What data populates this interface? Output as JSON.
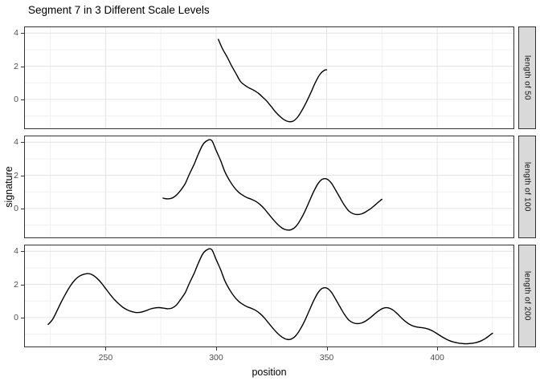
{
  "chart_data": {
    "type": "line",
    "title": "Segment 7 in 3 Different Scale Levels",
    "xlabel": "position",
    "ylabel": "signature",
    "x_ticks": [
      250,
      300,
      350,
      400
    ],
    "y_ticks": [
      4,
      2,
      0
    ],
    "x_minor": [
      225,
      275,
      325,
      375,
      425
    ],
    "y_minor": [
      3,
      1,
      -1
    ],
    "xlim": [
      213.5,
      434.5
    ],
    "ylim": [
      -1.75,
      4.35
    ],
    "grid": "major+minor",
    "legend": "none",
    "line_color": "#000000",
    "facets": [
      {
        "label": "length of 50",
        "points": [
          [
            301,
            3.62
          ],
          [
            303,
            3.02
          ],
          [
            305,
            2.55
          ],
          [
            307,
            2.02
          ],
          [
            309,
            1.55
          ],
          [
            311,
            1.08
          ],
          [
            313,
            0.85
          ],
          [
            315,
            0.68
          ],
          [
            317,
            0.55
          ],
          [
            319,
            0.38
          ],
          [
            321,
            0.14
          ],
          [
            323,
            -0.12
          ],
          [
            325,
            -0.45
          ],
          [
            327,
            -0.78
          ],
          [
            329,
            -1.05
          ],
          [
            331,
            -1.25
          ],
          [
            333,
            -1.35
          ],
          [
            335,
            -1.3
          ],
          [
            337,
            -1.05
          ],
          [
            339,
            -0.62
          ],
          [
            341,
            -0.12
          ],
          [
            343,
            0.45
          ],
          [
            345,
            1.05
          ],
          [
            347,
            1.52
          ],
          [
            349,
            1.76
          ],
          [
            350,
            1.78
          ]
        ]
      },
      {
        "label": "length of 100",
        "points": [
          [
            276,
            0.62
          ],
          [
            278,
            0.58
          ],
          [
            280,
            0.62
          ],
          [
            282,
            0.8
          ],
          [
            284,
            1.1
          ],
          [
            286,
            1.5
          ],
          [
            288,
            2.1
          ],
          [
            290,
            2.65
          ],
          [
            292,
            3.3
          ],
          [
            294,
            3.85
          ],
          [
            296,
            4.1
          ],
          [
            298,
            4.1
          ],
          [
            300,
            3.5
          ],
          [
            302,
            2.9
          ],
          [
            304,
            2.2
          ],
          [
            306,
            1.7
          ],
          [
            308,
            1.3
          ],
          [
            310,
            1.0
          ],
          [
            312,
            0.8
          ],
          [
            314,
            0.65
          ],
          [
            316,
            0.55
          ],
          [
            318,
            0.42
          ],
          [
            320,
            0.22
          ],
          [
            322,
            -0.05
          ],
          [
            324,
            -0.38
          ],
          [
            326,
            -0.7
          ],
          [
            328,
            -0.98
          ],
          [
            330,
            -1.2
          ],
          [
            332,
            -1.3
          ],
          [
            334,
            -1.28
          ],
          [
            336,
            -1.1
          ],
          [
            338,
            -0.72
          ],
          [
            340,
            -0.22
          ],
          [
            342,
            0.38
          ],
          [
            344,
            0.98
          ],
          [
            346,
            1.48
          ],
          [
            348,
            1.76
          ],
          [
            350,
            1.78
          ],
          [
            352,
            1.55
          ],
          [
            354,
            1.12
          ],
          [
            356,
            0.65
          ],
          [
            358,
            0.2
          ],
          [
            360,
            -0.15
          ],
          [
            362,
            -0.32
          ],
          [
            364,
            -0.37
          ],
          [
            366,
            -0.32
          ],
          [
            368,
            -0.18
          ],
          [
            370,
            0.0
          ],
          [
            372,
            0.22
          ],
          [
            374,
            0.45
          ],
          [
            375,
            0.55
          ]
        ]
      },
      {
        "label": "length of 200",
        "points": [
          [
            224,
            -0.42
          ],
          [
            226,
            -0.12
          ],
          [
            228,
            0.4
          ],
          [
            230,
            0.95
          ],
          [
            232,
            1.45
          ],
          [
            234,
            1.9
          ],
          [
            236,
            2.25
          ],
          [
            238,
            2.48
          ],
          [
            240,
            2.6
          ],
          [
            242,
            2.65
          ],
          [
            244,
            2.58
          ],
          [
            246,
            2.38
          ],
          [
            248,
            2.1
          ],
          [
            250,
            1.75
          ],
          [
            252,
            1.4
          ],
          [
            254,
            1.08
          ],
          [
            256,
            0.82
          ],
          [
            258,
            0.6
          ],
          [
            260,
            0.45
          ],
          [
            262,
            0.35
          ],
          [
            264,
            0.3
          ],
          [
            266,
            0.32
          ],
          [
            268,
            0.4
          ],
          [
            270,
            0.5
          ],
          [
            272,
            0.57
          ],
          [
            274,
            0.6
          ],
          [
            276,
            0.57
          ],
          [
            278,
            0.53
          ],
          [
            280,
            0.57
          ],
          [
            282,
            0.75
          ],
          [
            284,
            1.1
          ],
          [
            286,
            1.5
          ],
          [
            288,
            2.1
          ],
          [
            290,
            2.65
          ],
          [
            292,
            3.3
          ],
          [
            294,
            3.85
          ],
          [
            296,
            4.1
          ],
          [
            298,
            4.1
          ],
          [
            300,
            3.5
          ],
          [
            302,
            2.9
          ],
          [
            304,
            2.2
          ],
          [
            306,
            1.7
          ],
          [
            308,
            1.3
          ],
          [
            310,
            1.0
          ],
          [
            312,
            0.8
          ],
          [
            314,
            0.65
          ],
          [
            316,
            0.55
          ],
          [
            318,
            0.42
          ],
          [
            320,
            0.22
          ],
          [
            322,
            -0.05
          ],
          [
            324,
            -0.38
          ],
          [
            326,
            -0.7
          ],
          [
            328,
            -0.98
          ],
          [
            330,
            -1.2
          ],
          [
            332,
            -1.32
          ],
          [
            334,
            -1.3
          ],
          [
            336,
            -1.1
          ],
          [
            338,
            -0.72
          ],
          [
            340,
            -0.22
          ],
          [
            342,
            0.38
          ],
          [
            344,
            0.98
          ],
          [
            346,
            1.48
          ],
          [
            348,
            1.76
          ],
          [
            350,
            1.78
          ],
          [
            352,
            1.55
          ],
          [
            354,
            1.12
          ],
          [
            356,
            0.65
          ],
          [
            358,
            0.2
          ],
          [
            360,
            -0.15
          ],
          [
            362,
            -0.32
          ],
          [
            364,
            -0.37
          ],
          [
            366,
            -0.32
          ],
          [
            368,
            -0.18
          ],
          [
            370,
            0.02
          ],
          [
            372,
            0.25
          ],
          [
            374,
            0.45
          ],
          [
            376,
            0.58
          ],
          [
            378,
            0.58
          ],
          [
            380,
            0.45
          ],
          [
            382,
            0.22
          ],
          [
            384,
            -0.05
          ],
          [
            386,
            -0.28
          ],
          [
            388,
            -0.45
          ],
          [
            390,
            -0.55
          ],
          [
            392,
            -0.6
          ],
          [
            394,
            -0.63
          ],
          [
            396,
            -0.7
          ],
          [
            398,
            -0.82
          ],
          [
            400,
            -0.98
          ],
          [
            402,
            -1.15
          ],
          [
            404,
            -1.3
          ],
          [
            406,
            -1.42
          ],
          [
            408,
            -1.5
          ],
          [
            410,
            -1.55
          ],
          [
            412,
            -1.58
          ],
          [
            414,
            -1.58
          ],
          [
            416,
            -1.55
          ],
          [
            418,
            -1.5
          ],
          [
            420,
            -1.4
          ],
          [
            422,
            -1.25
          ],
          [
            424,
            -1.05
          ],
          [
            425,
            -0.95
          ]
        ]
      }
    ],
    "colors": {
      "grid_major": "#E4E4E4",
      "grid_minor": "#F1F1F1",
      "panel_border": "#333333",
      "strip_bg": "#D9D9D9",
      "axis_text": "#4D4D4D"
    }
  }
}
